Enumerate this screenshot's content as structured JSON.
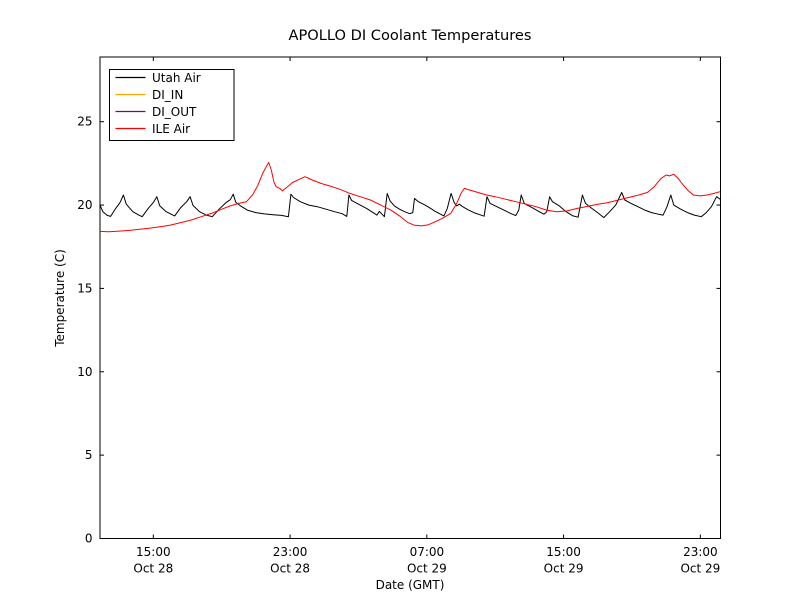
{
  "figure": {
    "background": "#ffffff"
  },
  "chart_data": {
    "type": "line",
    "title": "APOLLO DI Coolant Temperatures",
    "xlabel": "Date (GMT)",
    "ylabel": "Temperature (C)",
    "x_unit": "hours since Oct 28 00:00 GMT",
    "xlim": [
      11.88,
      48.18
    ],
    "ylim": [
      0,
      28.88
    ],
    "grid": false,
    "legend_position": "upper left",
    "frame_color": "#000000",
    "xticks": [
      {
        "t": 15,
        "time": "15:00",
        "date": "Oct 28"
      },
      {
        "t": 23,
        "time": "23:00",
        "date": "Oct 28"
      },
      {
        "t": 31,
        "time": "07:00",
        "date": "Oct 29"
      },
      {
        "t": 39,
        "time": "15:00",
        "date": "Oct 29"
      },
      {
        "t": 47,
        "time": "23:00",
        "date": "Oct 29"
      }
    ],
    "yticks": [
      0,
      5,
      10,
      15,
      20,
      25
    ],
    "series": [
      {
        "name": "Utah Air",
        "color": "#000000",
        "points": [
          [
            11.88,
            20.0
          ],
          [
            12.05,
            19.6
          ],
          [
            12.3,
            19.38
          ],
          [
            12.5,
            19.32
          ],
          [
            12.8,
            19.8
          ],
          [
            13.05,
            20.15
          ],
          [
            13.25,
            20.6
          ],
          [
            13.42,
            20.05
          ],
          [
            13.8,
            19.6
          ],
          [
            14.15,
            19.4
          ],
          [
            14.35,
            19.3
          ],
          [
            14.7,
            19.8
          ],
          [
            15.0,
            20.15
          ],
          [
            15.2,
            20.5
          ],
          [
            15.38,
            19.95
          ],
          [
            15.75,
            19.6
          ],
          [
            16.1,
            19.42
          ],
          [
            16.25,
            19.35
          ],
          [
            16.6,
            19.85
          ],
          [
            16.95,
            20.2
          ],
          [
            17.15,
            20.5
          ],
          [
            17.32,
            19.98
          ],
          [
            17.7,
            19.6
          ],
          [
            18.1,
            19.4
          ],
          [
            18.45,
            19.3
          ],
          [
            18.85,
            19.75
          ],
          [
            19.25,
            20.15
          ],
          [
            19.5,
            20.32
          ],
          [
            19.67,
            20.65
          ],
          [
            19.82,
            20.18
          ],
          [
            20.1,
            19.95
          ],
          [
            20.5,
            19.7
          ],
          [
            21.0,
            19.55
          ],
          [
            21.5,
            19.47
          ],
          [
            22.0,
            19.42
          ],
          [
            22.5,
            19.38
          ],
          [
            22.9,
            19.3
          ],
          [
            23.05,
            20.65
          ],
          [
            23.2,
            20.45
          ],
          [
            23.6,
            20.2
          ],
          [
            24.1,
            20.0
          ],
          [
            24.6,
            19.9
          ],
          [
            25.1,
            19.75
          ],
          [
            25.6,
            19.6
          ],
          [
            26.05,
            19.48
          ],
          [
            26.32,
            19.32
          ],
          [
            26.44,
            20.6
          ],
          [
            26.6,
            20.28
          ],
          [
            27.1,
            20.0
          ],
          [
            27.5,
            19.78
          ],
          [
            27.85,
            19.55
          ],
          [
            28.08,
            19.4
          ],
          [
            28.22,
            19.62
          ],
          [
            28.38,
            19.45
          ],
          [
            28.52,
            19.3
          ],
          [
            28.68,
            20.7
          ],
          [
            28.85,
            20.25
          ],
          [
            29.1,
            19.95
          ],
          [
            29.4,
            19.75
          ],
          [
            29.7,
            19.6
          ],
          [
            30.0,
            19.48
          ],
          [
            30.18,
            19.55
          ],
          [
            30.28,
            20.4
          ],
          [
            30.5,
            20.2
          ],
          [
            30.8,
            20.05
          ],
          [
            31.1,
            19.88
          ],
          [
            31.45,
            19.65
          ],
          [
            31.8,
            19.45
          ],
          [
            32.0,
            19.35
          ],
          [
            32.2,
            19.8
          ],
          [
            32.42,
            20.7
          ],
          [
            32.6,
            20.15
          ],
          [
            32.75,
            19.95
          ],
          [
            32.9,
            20.05
          ],
          [
            33.1,
            19.9
          ],
          [
            33.4,
            19.72
          ],
          [
            33.75,
            19.55
          ],
          [
            34.1,
            19.42
          ],
          [
            34.35,
            19.33
          ],
          [
            34.52,
            20.5
          ],
          [
            34.7,
            20.1
          ],
          [
            35.1,
            19.9
          ],
          [
            35.5,
            19.7
          ],
          [
            35.9,
            19.5
          ],
          [
            36.2,
            19.37
          ],
          [
            36.38,
            19.7
          ],
          [
            36.52,
            20.6
          ],
          [
            36.7,
            20.1
          ],
          [
            37.1,
            19.88
          ],
          [
            37.5,
            19.65
          ],
          [
            37.85,
            19.45
          ],
          [
            38.02,
            19.6
          ],
          [
            38.18,
            20.5
          ],
          [
            38.35,
            20.2
          ],
          [
            38.75,
            19.95
          ],
          [
            39.15,
            19.6
          ],
          [
            39.55,
            19.35
          ],
          [
            39.85,
            19.27
          ],
          [
            40.1,
            20.6
          ],
          [
            40.28,
            20.1
          ],
          [
            40.65,
            19.8
          ],
          [
            41.05,
            19.5
          ],
          [
            41.35,
            19.25
          ],
          [
            41.7,
            19.6
          ],
          [
            42.05,
            20.0
          ],
          [
            42.4,
            20.75
          ],
          [
            42.58,
            20.3
          ],
          [
            42.95,
            20.1
          ],
          [
            43.35,
            19.9
          ],
          [
            43.75,
            19.7
          ],
          [
            44.15,
            19.55
          ],
          [
            44.55,
            19.45
          ],
          [
            44.82,
            19.4
          ],
          [
            45.05,
            19.9
          ],
          [
            45.27,
            20.6
          ],
          [
            45.45,
            20.0
          ],
          [
            45.85,
            19.75
          ],
          [
            46.25,
            19.55
          ],
          [
            46.65,
            19.4
          ],
          [
            47.05,
            19.3
          ],
          [
            47.35,
            19.55
          ],
          [
            47.65,
            19.9
          ],
          [
            47.95,
            20.5
          ],
          [
            48.15,
            20.35
          ]
        ]
      },
      {
        "name": "DI_IN",
        "color": "#ffa500",
        "points": []
      },
      {
        "name": "DI_OUT",
        "color": "#800080",
        "points": []
      },
      {
        "name": "ILE Air",
        "color": "#ff0000",
        "points": [
          [
            11.88,
            18.42
          ],
          [
            12.4,
            18.4
          ],
          [
            13.0,
            18.44
          ],
          [
            13.6,
            18.48
          ],
          [
            14.2,
            18.55
          ],
          [
            14.8,
            18.62
          ],
          [
            15.4,
            18.7
          ],
          [
            16.0,
            18.8
          ],
          [
            16.6,
            18.95
          ],
          [
            17.2,
            19.1
          ],
          [
            17.8,
            19.3
          ],
          [
            18.4,
            19.5
          ],
          [
            19.0,
            19.75
          ],
          [
            19.5,
            19.95
          ],
          [
            20.0,
            20.1
          ],
          [
            20.45,
            20.2
          ],
          [
            20.8,
            20.6
          ],
          [
            21.1,
            21.15
          ],
          [
            21.4,
            21.9
          ],
          [
            21.6,
            22.3
          ],
          [
            21.75,
            22.55
          ],
          [
            21.9,
            22.1
          ],
          [
            22.05,
            21.4
          ],
          [
            22.18,
            21.1
          ],
          [
            22.4,
            21.0
          ],
          [
            22.55,
            20.85
          ],
          [
            22.85,
            21.1
          ],
          [
            23.15,
            21.35
          ],
          [
            23.55,
            21.55
          ],
          [
            23.88,
            21.7
          ],
          [
            24.3,
            21.5
          ],
          [
            24.8,
            21.3
          ],
          [
            25.3,
            21.15
          ],
          [
            25.9,
            20.95
          ],
          [
            26.5,
            20.7
          ],
          [
            27.1,
            20.5
          ],
          [
            27.7,
            20.3
          ],
          [
            28.3,
            20.0
          ],
          [
            28.9,
            19.7
          ],
          [
            29.4,
            19.35
          ],
          [
            29.9,
            18.95
          ],
          [
            30.25,
            18.8
          ],
          [
            30.7,
            18.75
          ],
          [
            31.1,
            18.82
          ],
          [
            31.5,
            19.0
          ],
          [
            31.9,
            19.2
          ],
          [
            32.4,
            19.5
          ],
          [
            32.75,
            20.1
          ],
          [
            33.0,
            20.7
          ],
          [
            33.2,
            21.0
          ],
          [
            33.5,
            20.9
          ],
          [
            34.0,
            20.75
          ],
          [
            34.5,
            20.6
          ],
          [
            35.0,
            20.5
          ],
          [
            35.6,
            20.35
          ],
          [
            36.2,
            20.2
          ],
          [
            36.8,
            20.05
          ],
          [
            37.4,
            19.9
          ],
          [
            38.0,
            19.7
          ],
          [
            38.6,
            19.6
          ],
          [
            39.2,
            19.65
          ],
          [
            39.8,
            19.8
          ],
          [
            40.4,
            19.92
          ],
          [
            41.0,
            20.05
          ],
          [
            41.6,
            20.15
          ],
          [
            42.2,
            20.3
          ],
          [
            42.8,
            20.45
          ],
          [
            43.4,
            20.6
          ],
          [
            43.9,
            20.75
          ],
          [
            44.3,
            21.1
          ],
          [
            44.7,
            21.6
          ],
          [
            45.0,
            21.8
          ],
          [
            45.2,
            21.75
          ],
          [
            45.45,
            21.85
          ],
          [
            45.7,
            21.6
          ],
          [
            46.0,
            21.2
          ],
          [
            46.3,
            20.85
          ],
          [
            46.6,
            20.6
          ],
          [
            47.0,
            20.55
          ],
          [
            47.4,
            20.6
          ],
          [
            47.8,
            20.7
          ],
          [
            48.15,
            20.8
          ]
        ]
      }
    ]
  }
}
